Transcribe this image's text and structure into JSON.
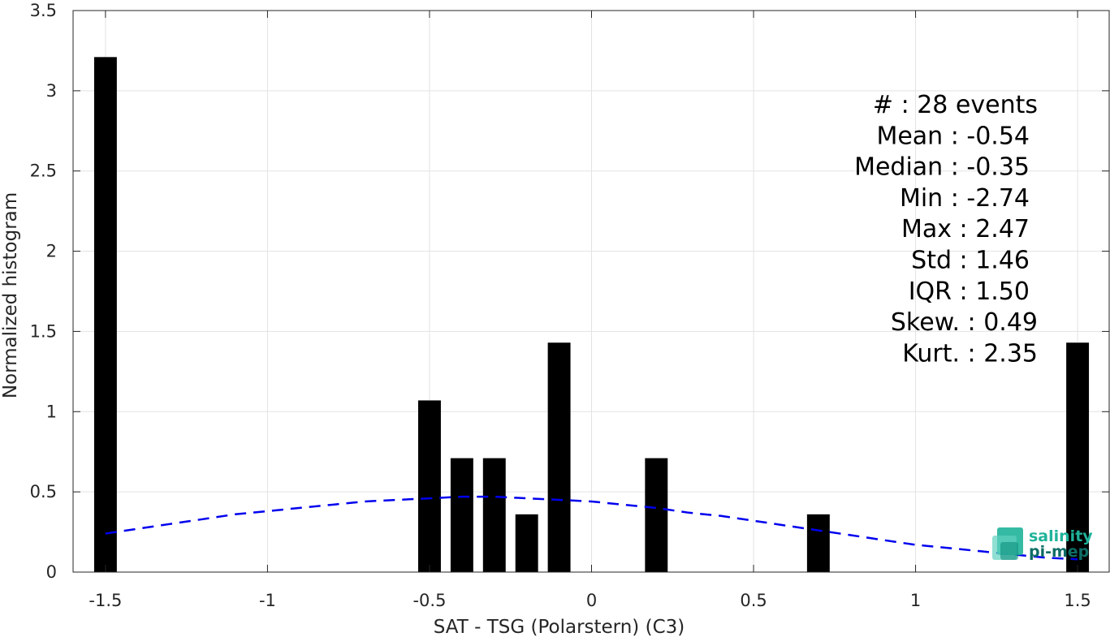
{
  "chart_data": {
    "type": "bar",
    "title": "",
    "xlabel": "SAT - TSG (Polarstern) (C3)",
    "ylabel": "Normalized histogram",
    "xlim": [
      -1.6,
      1.6
    ],
    "ylim": [
      0,
      3.5
    ],
    "grid": true,
    "x_ticks": [
      -1.5,
      -1,
      -0.5,
      0,
      0.5,
      1,
      1.5
    ],
    "x_tick_labels": [
      "-1.5",
      "-1",
      "-0.5",
      "0",
      "0.5",
      "1",
      "1.5"
    ],
    "y_ticks": [
      0,
      0.5,
      1,
      1.5,
      2,
      2.5,
      3,
      3.5
    ],
    "y_tick_labels": [
      "0",
      "0.5",
      "1",
      "1.5",
      "2",
      "2.5",
      "3",
      "3.5"
    ],
    "bar_width": 0.07,
    "bar_color": "#000000",
    "bars": [
      {
        "x": -1.5,
        "value": 3.21
      },
      {
        "x": -0.5,
        "value": 1.07
      },
      {
        "x": -0.4,
        "value": 0.71
      },
      {
        "x": -0.3,
        "value": 0.71
      },
      {
        "x": -0.2,
        "value": 0.36
      },
      {
        "x": -0.1,
        "value": 1.43
      },
      {
        "x": 0.2,
        "value": 0.71
      },
      {
        "x": 0.7,
        "value": 0.36
      },
      {
        "x": 1.5,
        "value": 1.43
      }
    ],
    "fit_curve": {
      "style": "dashed",
      "color": "#0000ee",
      "x": [
        -1.5,
        -1.4,
        -1.3,
        -1.2,
        -1.1,
        -1.0,
        -0.9,
        -0.8,
        -0.7,
        -0.6,
        -0.5,
        -0.4,
        -0.3,
        -0.2,
        -0.1,
        0.0,
        0.1,
        0.2,
        0.3,
        0.4,
        0.5,
        0.6,
        0.7,
        0.8,
        0.9,
        1.0,
        1.1,
        1.2,
        1.3,
        1.4,
        1.5
      ],
      "y": [
        0.24,
        0.27,
        0.3,
        0.33,
        0.36,
        0.38,
        0.4,
        0.42,
        0.44,
        0.45,
        0.46,
        0.47,
        0.47,
        0.46,
        0.45,
        0.44,
        0.42,
        0.4,
        0.37,
        0.35,
        0.32,
        0.29,
        0.26,
        0.23,
        0.2,
        0.17,
        0.15,
        0.13,
        0.11,
        0.09,
        0.08
      ]
    }
  },
  "stats": {
    "lines": [
      "#  : 28 events",
      "Mean : -0.54",
      "Median : -0.35",
      "Min : -2.74",
      "Max : 2.47",
      "Std : 1.46",
      "IQR : 1.50",
      "Skew. : 0.49",
      "Kurt. : 2.35"
    ]
  },
  "logo": {
    "line1": "salinity",
    "line2": "pi-mep",
    "color1": "#1fb39a",
    "color2": "#0e6e66"
  }
}
